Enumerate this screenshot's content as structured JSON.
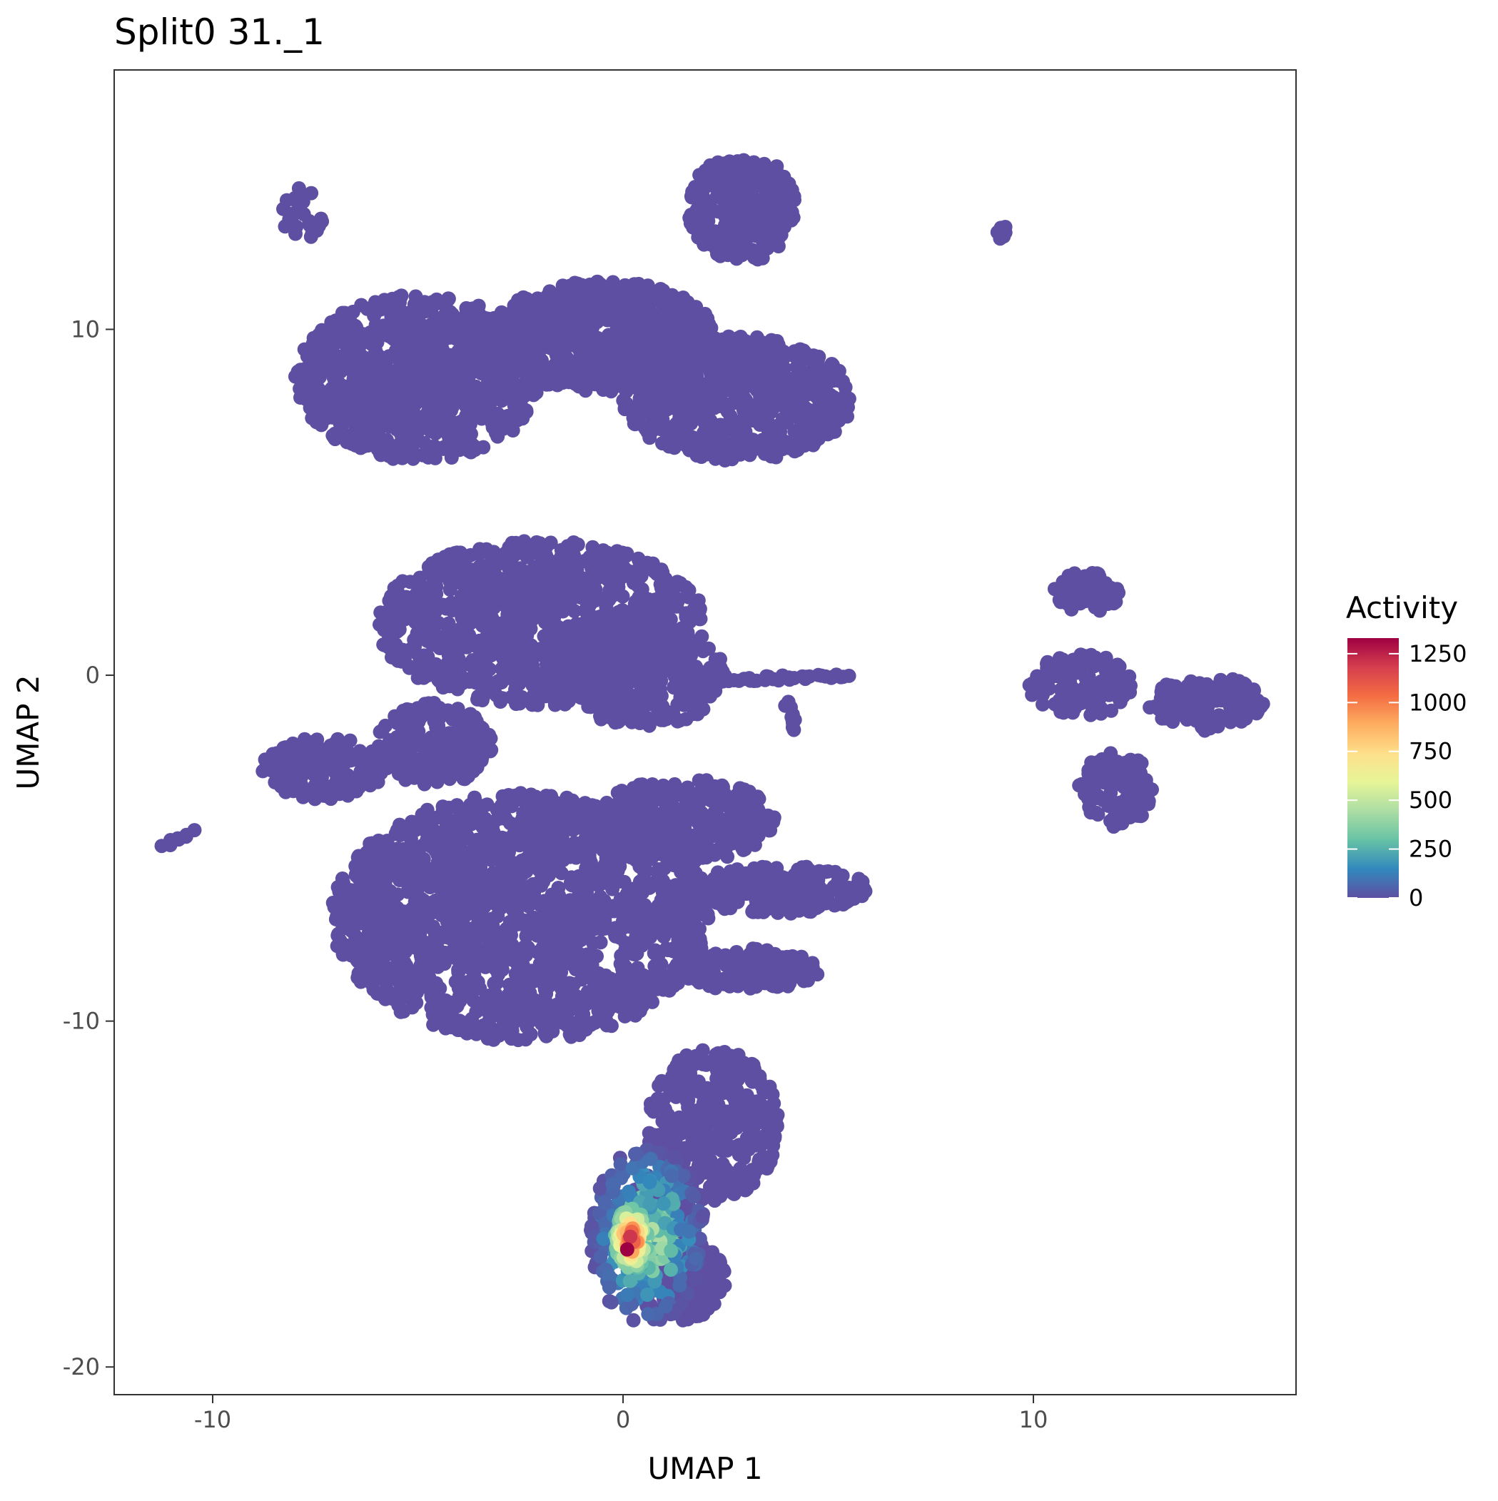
{
  "chart_data": {
    "type": "scatter",
    "title": "Split0 31._1",
    "xlabel": "UMAP 1",
    "ylabel": "UMAP 2",
    "xlim": [
      -12.4,
      16.4
    ],
    "ylim": [
      -20.8,
      17.5
    ],
    "x_ticks": [
      -10,
      0,
      10
    ],
    "y_ticks": [
      -20,
      -10,
      0,
      10
    ],
    "x_tick_labels": [
      "-10",
      "0",
      "10"
    ],
    "y_tick_labels": [
      "-20",
      "-10",
      "0",
      "10"
    ],
    "grid": false,
    "legend": {
      "title": "Activity",
      "placement": "right",
      "range": [
        0,
        1330
      ],
      "ticks": [
        0,
        250,
        500,
        750,
        1000,
        1250
      ],
      "tick_labels": [
        "0",
        "250",
        "500",
        "750",
        "1000",
        "1250"
      ],
      "colors": [
        "#5e4fa2",
        "#3288bd",
        "#66c2a5",
        "#abdda4",
        "#e6f598",
        "#fee08b",
        "#fdae61",
        "#f46d43",
        "#d53e4f",
        "#9e0142"
      ]
    },
    "base_color": "#5e4fa2",
    "clusters": [
      {
        "type": "blob",
        "cx": -5.0,
        "cy": 8.6,
        "rx": 3.0,
        "ry": 2.4,
        "n": 900
      },
      {
        "type": "blob",
        "cx": -0.5,
        "cy": 9.8,
        "rx": 2.8,
        "ry": 1.6,
        "n": 700
      },
      {
        "type": "blob",
        "cx": 2.8,
        "cy": 8.0,
        "rx": 2.8,
        "ry": 1.8,
        "n": 700
      },
      {
        "type": "blob",
        "cx": 2.9,
        "cy": 13.5,
        "rx": 1.3,
        "ry": 1.6,
        "n": 260
      },
      {
        "type": "blob",
        "cx": -2.0,
        "cy": 1.5,
        "rx": 4.0,
        "ry": 2.4,
        "n": 1000
      },
      {
        "type": "blob",
        "cx": 0.5,
        "cy": 0.0,
        "rx": 2.0,
        "ry": 1.5,
        "n": 300
      },
      {
        "type": "blob",
        "cx": -7.3,
        "cy": -2.7,
        "rx": 1.5,
        "ry": 0.9,
        "n": 160
      },
      {
        "type": "blob",
        "cx": -4.6,
        "cy": -2.0,
        "rx": 1.4,
        "ry": 1.2,
        "n": 200
      },
      {
        "type": "blob",
        "cx": -2.5,
        "cy": -7.0,
        "rx": 4.6,
        "ry": 3.6,
        "n": 1700
      },
      {
        "type": "blob",
        "cx": 1.5,
        "cy": -4.2,
        "rx": 2.2,
        "ry": 1.2,
        "n": 320
      },
      {
        "type": "blob",
        "cx": 3.8,
        "cy": -6.2,
        "rx": 2.2,
        "ry": 0.7,
        "n": 220
      },
      {
        "type": "blob",
        "cx": 3.0,
        "cy": -8.5,
        "rx": 1.8,
        "ry": 0.6,
        "n": 160
      },
      {
        "type": "blob",
        "cx": 2.2,
        "cy": -13.0,
        "rx": 1.6,
        "ry": 2.2,
        "n": 380
      },
      {
        "type": "blob",
        "cx": 1.4,
        "cy": -17.5,
        "rx": 1.1,
        "ry": 1.2,
        "n": 200
      },
      {
        "type": "blob",
        "cx": 0.8,
        "cy": -15.8,
        "rx": 1.0,
        "ry": 1.5,
        "n": 160
      },
      {
        "type": "blob",
        "cx": 11.3,
        "cy": 2.4,
        "rx": 0.8,
        "ry": 0.6,
        "n": 60
      },
      {
        "type": "blob",
        "cx": 11.2,
        "cy": -0.3,
        "rx": 1.3,
        "ry": 0.9,
        "n": 120
      },
      {
        "type": "blob",
        "cx": 14.2,
        "cy": -0.8,
        "rx": 1.4,
        "ry": 0.8,
        "n": 140
      },
      {
        "type": "blob",
        "cx": 12.0,
        "cy": -3.3,
        "rx": 0.9,
        "ry": 1.1,
        "n": 110
      },
      {
        "type": "blob",
        "cx": 9.2,
        "cy": 12.8,
        "rx": 0.2,
        "ry": 0.2,
        "n": 8
      },
      {
        "type": "blob",
        "cx": -7.8,
        "cy": 13.3,
        "rx": 0.5,
        "ry": 0.8,
        "n": 25
      },
      {
        "type": "line",
        "x0": -11.2,
        "y0": -4.9,
        "x1": -10.5,
        "y1": -4.5,
        "n": 8
      },
      {
        "type": "line",
        "x0": 1.6,
        "y0": -0.2,
        "x1": 5.5,
        "y1": 0.0,
        "n": 40
      },
      {
        "type": "line",
        "x0": 4.0,
        "y0": -0.8,
        "x1": 4.2,
        "y1": -1.6,
        "n": 10
      }
    ],
    "hotspot": {
      "cx": 0.2,
      "cy": -16.3,
      "rx": 0.4,
      "ry": 0.9,
      "n": 90,
      "max_activity": 1330
    },
    "warm_zone": {
      "cx": 0.6,
      "cy": -16.2,
      "rx": 1.4,
      "ry": 2.6,
      "n": 260,
      "max_activity": 600
    }
  }
}
